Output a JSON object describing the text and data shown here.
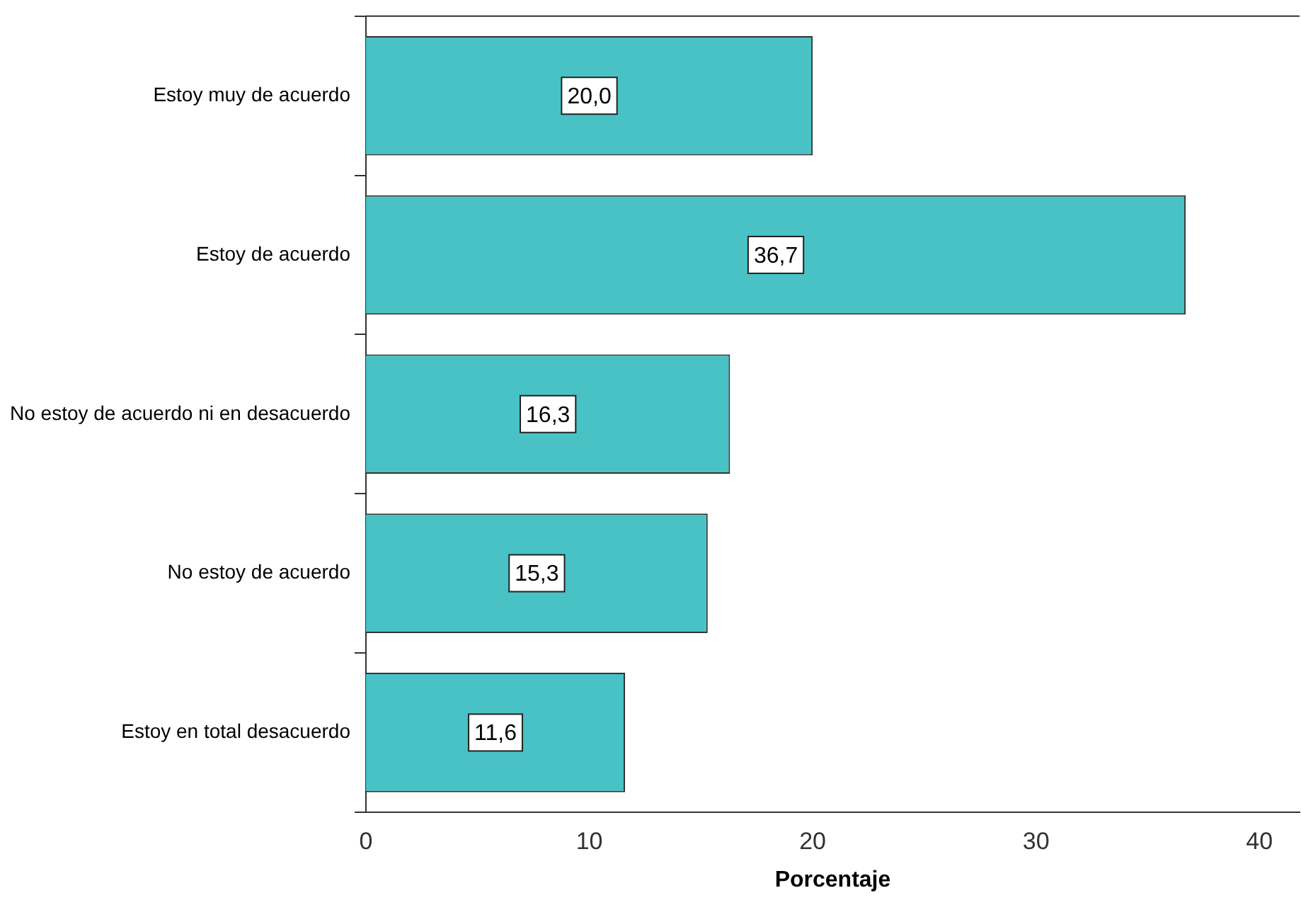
{
  "chart_data": {
    "type": "bar",
    "orientation": "horizontal",
    "xlabel": "Porcentaje",
    "categories": [
      "Estoy muy de acuerdo",
      "Estoy de acuerdo",
      "No estoy de acuerdo ni en desacuerdo",
      "No estoy de acuerdo",
      "Estoy en total desacuerdo"
    ],
    "values": [
      20.0,
      36.7,
      16.3,
      15.3,
      11.6
    ],
    "value_labels": [
      "20,0",
      "36,7",
      "16,3",
      "15,3",
      "11,6"
    ],
    "color": "#48c2c5",
    "xlim": [
      0,
      41.8
    ],
    "xticks": [
      0,
      10,
      20,
      30,
      40
    ],
    "grid": false,
    "legend": false
  }
}
